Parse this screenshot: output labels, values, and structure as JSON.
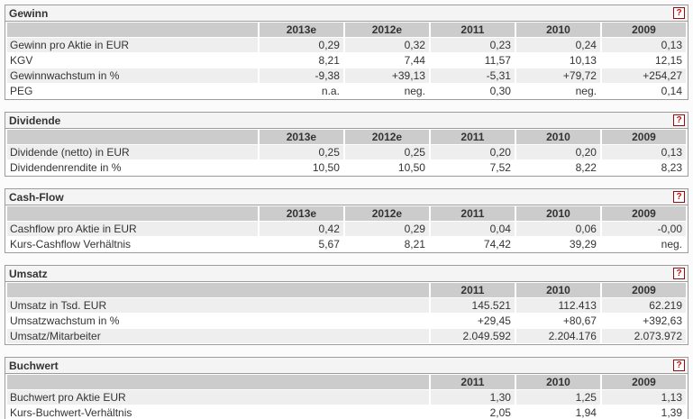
{
  "help_icon_label": "?",
  "colors": {
    "box_border": "#9c9c9c",
    "title_bg": "#f4f4f4",
    "year_header_bg": "#cccccc",
    "row_alt_bg": "#eeeeee",
    "row_bg": "#ffffff",
    "help_border": "#8f1010",
    "help_text": "#cc1111",
    "text": "#333333"
  },
  "sections": [
    {
      "title": "Gewinn",
      "columns": [
        "2013e",
        "2012e",
        "2011",
        "2010",
        "2009"
      ],
      "rows": [
        {
          "label": "Gewinn pro Aktie in EUR",
          "values": [
            "0,29",
            "0,32",
            "0,23",
            "0,24",
            "0,13"
          ]
        },
        {
          "label": "KGV",
          "values": [
            "8,21",
            "7,44",
            "11,57",
            "10,13",
            "12,15"
          ]
        },
        {
          "label": "Gewinnwachstum in %",
          "values": [
            "-9,38",
            "+39,13",
            "-5,31",
            "+79,72",
            "+254,27"
          ]
        },
        {
          "label": "PEG",
          "values": [
            "n.a.",
            "neg.",
            "0,30",
            "neg.",
            "0,14"
          ]
        }
      ]
    },
    {
      "title": "Dividende",
      "columns": [
        "2013e",
        "2012e",
        "2011",
        "2010",
        "2009"
      ],
      "rows": [
        {
          "label": "Dividende (netto) in EUR",
          "values": [
            "0,25",
            "0,25",
            "0,20",
            "0,20",
            "0,13"
          ]
        },
        {
          "label": "Dividendenrendite in %",
          "values": [
            "10,50",
            "10,50",
            "7,52",
            "8,22",
            "8,23"
          ]
        }
      ]
    },
    {
      "title": "Cash-Flow",
      "columns": [
        "2013e",
        "2012e",
        "2011",
        "2010",
        "2009"
      ],
      "rows": [
        {
          "label": "Cashflow pro Aktie in EUR",
          "values": [
            "0,42",
            "0,29",
            "0,04",
            "0,06",
            "-0,00"
          ]
        },
        {
          "label": "Kurs-Cashflow Verhältnis",
          "values": [
            "5,67",
            "8,21",
            "74,42",
            "39,29",
            "neg."
          ]
        }
      ]
    },
    {
      "title": "Umsatz",
      "columns": [
        "2011",
        "2010",
        "2009"
      ],
      "rows": [
        {
          "label": "Umsatz in Tsd. EUR",
          "values": [
            "145.521",
            "112.413",
            "62.219"
          ]
        },
        {
          "label": "Umsatzwachstum in %",
          "values": [
            "+29,45",
            "+80,67",
            "+392,63"
          ]
        },
        {
          "label": "Umsatz/Mitarbeiter",
          "values": [
            "2.049.592",
            "2.204.176",
            "2.073.972"
          ]
        }
      ]
    },
    {
      "title": "Buchwert",
      "columns": [
        "2011",
        "2010",
        "2009"
      ],
      "rows": [
        {
          "label": "Buchwert pro Aktie EUR",
          "values": [
            "1,30",
            "1,25",
            "1,13"
          ]
        },
        {
          "label": "Kurs-Buchwert-Verhältnis",
          "values": [
            "2,05",
            "1,94",
            "1,39"
          ]
        }
      ]
    }
  ]
}
